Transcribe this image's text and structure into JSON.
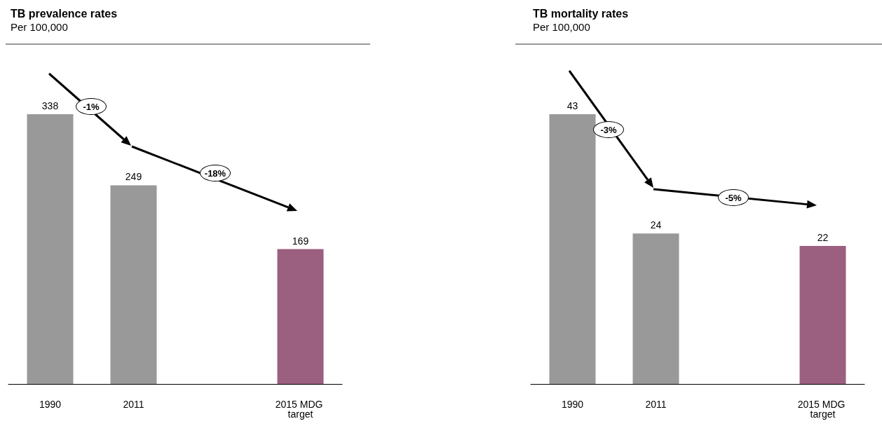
{
  "chart_data": [
    {
      "type": "bar",
      "title": "TB prevalence rates",
      "subtitle": "Per 100,000",
      "categories": [
        "1990",
        "2011",
        null,
        "2015 MDG target"
      ],
      "values": [
        338,
        249,
        null,
        169
      ],
      "colors": [
        "#999999",
        "#999999",
        "#999999",
        "#9b5f7f"
      ],
      "tick_labels": "x",
      "data_labels": true,
      "annotations": [
        "-1%",
        "-18%"
      ]
    },
    {
      "type": "bar",
      "title": "TB mortality rates",
      "subtitle": "Per 100,000",
      "categories": [
        "1990",
        "2011",
        null,
        "2015 MDG target"
      ],
      "values": [
        43,
        24,
        null,
        22
      ],
      "colors": [
        "#999999",
        "#999999",
        "#999999",
        "#9b5f7f"
      ],
      "tick_labels": "x",
      "data_labels": true,
      "annotations": [
        "-3%",
        "-5%"
      ]
    }
  ]
}
